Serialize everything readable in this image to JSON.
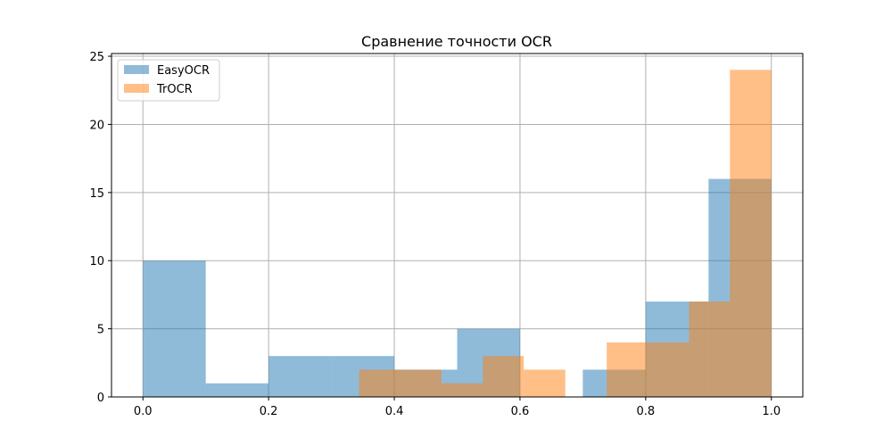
{
  "chart_data": {
    "type": "histogram",
    "title": "Сравнение точности OCR",
    "xlabel": "",
    "ylabel": "",
    "xlim": [
      -0.05,
      1.05
    ],
    "ylim": [
      0,
      25.2
    ],
    "xticks": [
      "0.0",
      "0.2",
      "0.4",
      "0.6",
      "0.8",
      "1.0"
    ],
    "yticks": [
      "0",
      "5",
      "10",
      "15",
      "20",
      "25"
    ],
    "grid": true,
    "legend": "top-left",
    "series": [
      {
        "name": "EasyOCR",
        "color": "#1f77b4",
        "opacity": 0.5,
        "bins": [
          {
            "x0": 0.0,
            "x1": 0.1,
            "count": 10
          },
          {
            "x0": 0.1,
            "x1": 0.2,
            "count": 1
          },
          {
            "x0": 0.2,
            "x1": 0.3,
            "count": 3
          },
          {
            "x0": 0.3,
            "x1": 0.4,
            "count": 3
          },
          {
            "x0": 0.4,
            "x1": 0.5,
            "count": 2
          },
          {
            "x0": 0.5,
            "x1": 0.6,
            "count": 5
          },
          {
            "x0": 0.6,
            "x1": 0.7,
            "count": 0
          },
          {
            "x0": 0.7,
            "x1": 0.8,
            "count": 2
          },
          {
            "x0": 0.8,
            "x1": 0.9,
            "count": 7
          },
          {
            "x0": 0.9,
            "x1": 1.0,
            "count": 16
          }
        ]
      },
      {
        "name": "TrOCR",
        "color": "#ff7f0e",
        "opacity": 0.5,
        "bins": [
          {
            "x0": 0.344,
            "x1": 0.41,
            "count": 2
          },
          {
            "x0": 0.41,
            "x1": 0.475,
            "count": 2
          },
          {
            "x0": 0.475,
            "x1": 0.541,
            "count": 1
          },
          {
            "x0": 0.541,
            "x1": 0.606,
            "count": 3
          },
          {
            "x0": 0.606,
            "x1": 0.672,
            "count": 2
          },
          {
            "x0": 0.672,
            "x1": 0.738,
            "count": 0
          },
          {
            "x0": 0.738,
            "x1": 0.803,
            "count": 4
          },
          {
            "x0": 0.803,
            "x1": 0.869,
            "count": 4
          },
          {
            "x0": 0.869,
            "x1": 0.934,
            "count": 7
          },
          {
            "x0": 0.934,
            "x1": 1.0,
            "count": 24
          }
        ]
      }
    ]
  }
}
